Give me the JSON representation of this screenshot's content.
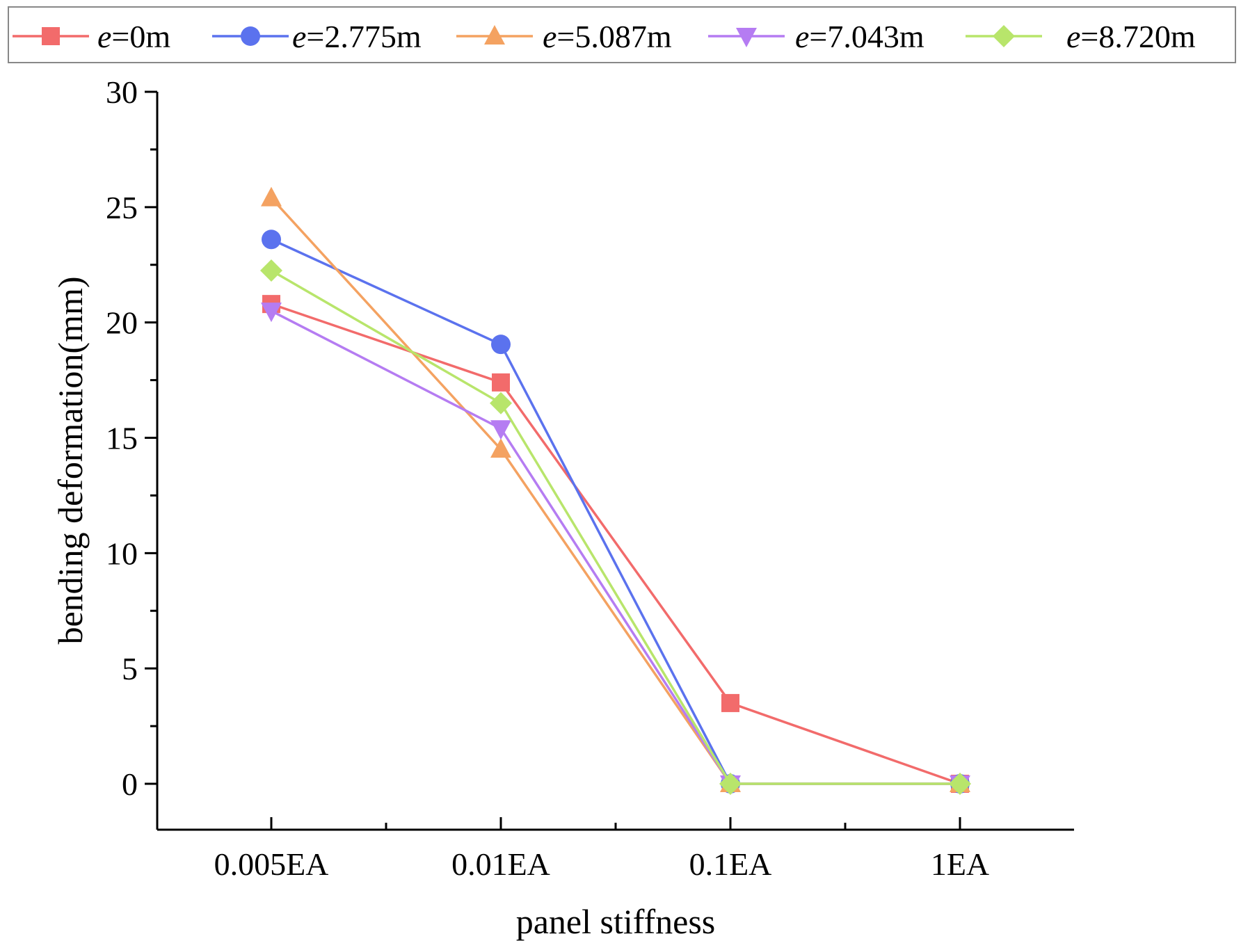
{
  "chart_data": {
    "type": "line",
    "title": "",
    "xlabel": "panel stiffness",
    "ylabel": "bending deformation(mm)",
    "categories": [
      "0.005EA",
      "0.01EA",
      "0.1EA",
      "1EA"
    ],
    "ylim": [
      -2,
      30
    ],
    "yticks": [
      0,
      5,
      10,
      15,
      20,
      25,
      30
    ],
    "grid": false,
    "legend_position": "top",
    "series": [
      {
        "name": "e=0m",
        "var": "e",
        "eq": "=0m",
        "color": "#f26b6b",
        "marker": "square",
        "values": [
          20.8,
          17.4,
          3.5,
          0
        ]
      },
      {
        "name": "e=2.775m",
        "var": "e",
        "eq": "=2.775m",
        "color": "#5b72ee",
        "marker": "circle",
        "values": [
          23.6,
          19.05,
          0,
          0
        ]
      },
      {
        "name": "e=5.087m",
        "var": "e",
        "eq": "=5.087m",
        "color": "#f4a261",
        "marker": "triangle-up",
        "values": [
          25.4,
          14.5,
          0,
          0
        ]
      },
      {
        "name": "e=7.043m",
        "var": "e",
        "eq": "=7.043m",
        "color": "#b57cf2",
        "marker": "triangle-down",
        "values": [
          20.5,
          15.4,
          0,
          0
        ]
      },
      {
        "name": "e=8.720m",
        "var": "e",
        "eq": "=8.720m",
        "color": "#b8e56b",
        "marker": "diamond",
        "values": [
          22.25,
          16.5,
          0,
          0
        ]
      }
    ]
  }
}
